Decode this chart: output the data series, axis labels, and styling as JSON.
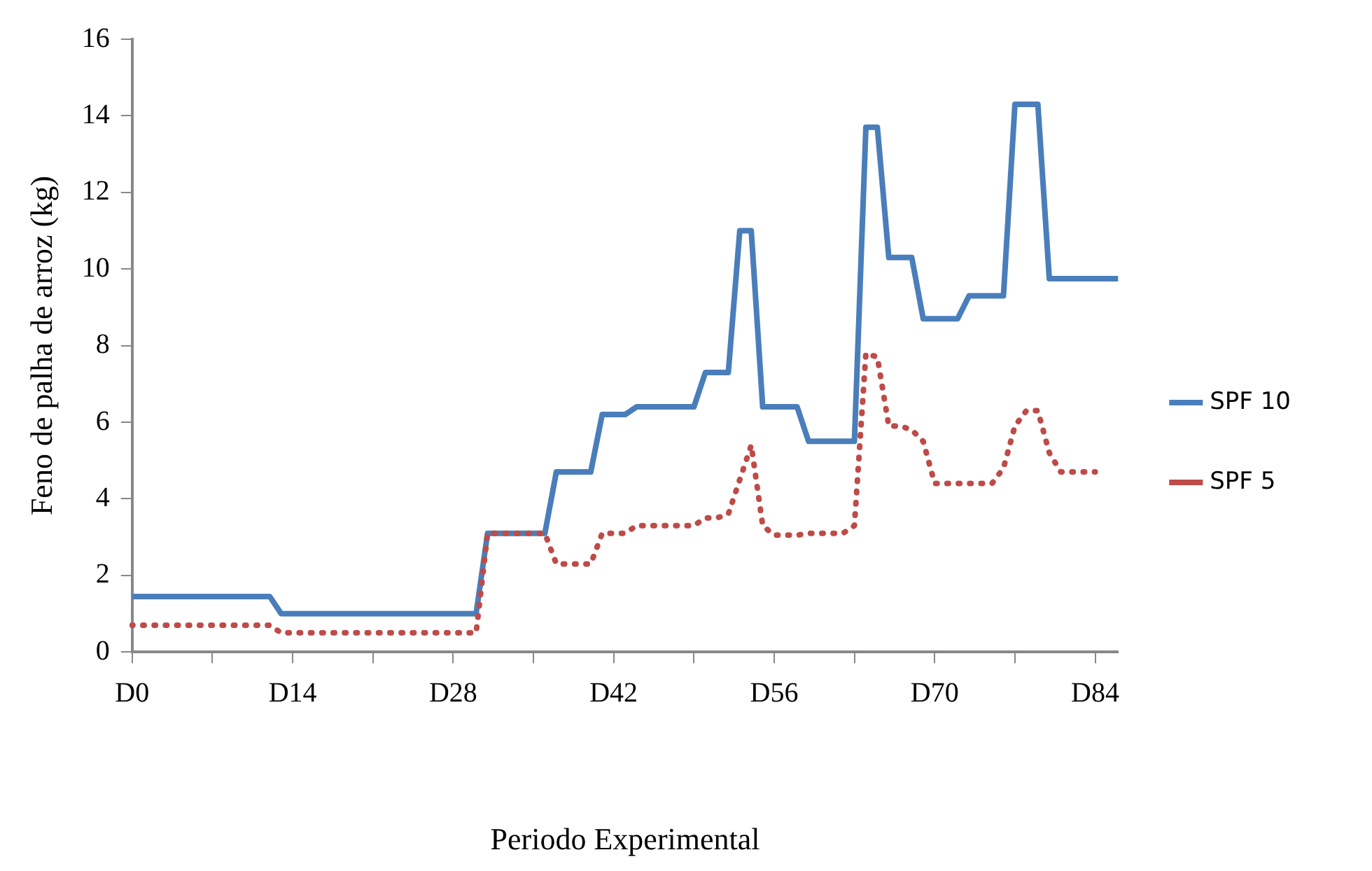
{
  "chart_data": {
    "type": "line",
    "xlabel": "Periodo Experimental",
    "ylabel": "Feno de palha de arroz (kg)",
    "categories": [
      "D0",
      null,
      null,
      null,
      null,
      null,
      null,
      null,
      null,
      null,
      null,
      null,
      null,
      null,
      "D14",
      null,
      null,
      null,
      null,
      null,
      null,
      null,
      null,
      null,
      null,
      null,
      null,
      null,
      "D28",
      null,
      null,
      null,
      null,
      null,
      null,
      null,
      null,
      null,
      null,
      null,
      null,
      null,
      "D42",
      null,
      null,
      null,
      null,
      null,
      null,
      null,
      null,
      null,
      null,
      null,
      null,
      null,
      "D56",
      null,
      null,
      null,
      null,
      null,
      null,
      null,
      null,
      null,
      null,
      null,
      null,
      null,
      "D70",
      null,
      null,
      null,
      null,
      null,
      null,
      null,
      null,
      null,
      null,
      null,
      null,
      null,
      "D84",
      null,
      null
    ],
    "ylim": [
      0,
      16
    ],
    "yticks": [
      0,
      2,
      4,
      6,
      8,
      10,
      12,
      14,
      16
    ],
    "grid": false,
    "legend": "right",
    "series": [
      {
        "name": "SPF 10",
        "color": "#4a7ebb",
        "line_style": "solid",
        "values": [
          1.45,
          1.45,
          1.45,
          1.45,
          1.45,
          1.45,
          1.45,
          1.45,
          1.45,
          1.45,
          1.45,
          1.45,
          1.45,
          1.0,
          1.0,
          1.0,
          1.0,
          1.0,
          1.0,
          1.0,
          1.0,
          1.0,
          1.0,
          1.0,
          1.0,
          1.0,
          1.0,
          1.0,
          1.0,
          1.0,
          1.0,
          3.1,
          3.1,
          3.1,
          3.1,
          3.1,
          3.1,
          4.7,
          4.7,
          4.7,
          4.7,
          6.2,
          6.2,
          6.2,
          6.4,
          6.4,
          6.4,
          6.4,
          6.4,
          6.4,
          7.3,
          7.3,
          7.3,
          11.0,
          11.0,
          6.4,
          6.4,
          6.4,
          6.4,
          5.5,
          5.5,
          5.5,
          5.5,
          5.5,
          13.7,
          13.7,
          10.3,
          10.3,
          10.3,
          8.7,
          8.7,
          8.7,
          8.7,
          9.3,
          9.3,
          9.3,
          9.3,
          14.3,
          14.3,
          14.3,
          9.75,
          9.75,
          9.75,
          9.75,
          9.75,
          9.75,
          9.75
        ]
      },
      {
        "name": "SPF 5",
        "color": "#be4b48",
        "line_style": "dotted",
        "values": [
          0.7,
          0.7,
          0.7,
          0.7,
          0.7,
          0.7,
          0.7,
          0.7,
          0.7,
          0.7,
          0.7,
          0.7,
          0.7,
          0.5,
          0.5,
          0.5,
          0.5,
          0.5,
          0.5,
          0.5,
          0.5,
          0.5,
          0.5,
          0.5,
          0.5,
          0.5,
          0.5,
          0.5,
          0.5,
          0.5,
          0.5,
          3.1,
          3.1,
          3.1,
          3.1,
          3.1,
          3.1,
          2.3,
          2.3,
          2.3,
          2.3,
          3.1,
          3.1,
          3.1,
          3.3,
          3.3,
          3.3,
          3.3,
          3.3,
          3.3,
          3.5,
          3.5,
          3.6,
          4.5,
          5.4,
          3.3,
          3.05,
          3.05,
          3.05,
          3.1,
          3.1,
          3.1,
          3.1,
          3.3,
          7.8,
          7.7,
          5.9,
          5.9,
          5.8,
          5.5,
          4.4,
          4.4,
          4.4,
          4.4,
          4.4,
          4.4,
          4.8,
          5.9,
          6.3,
          6.3,
          5.2,
          4.7,
          4.7,
          4.7,
          4.7,
          null,
          null
        ]
      }
    ]
  }
}
